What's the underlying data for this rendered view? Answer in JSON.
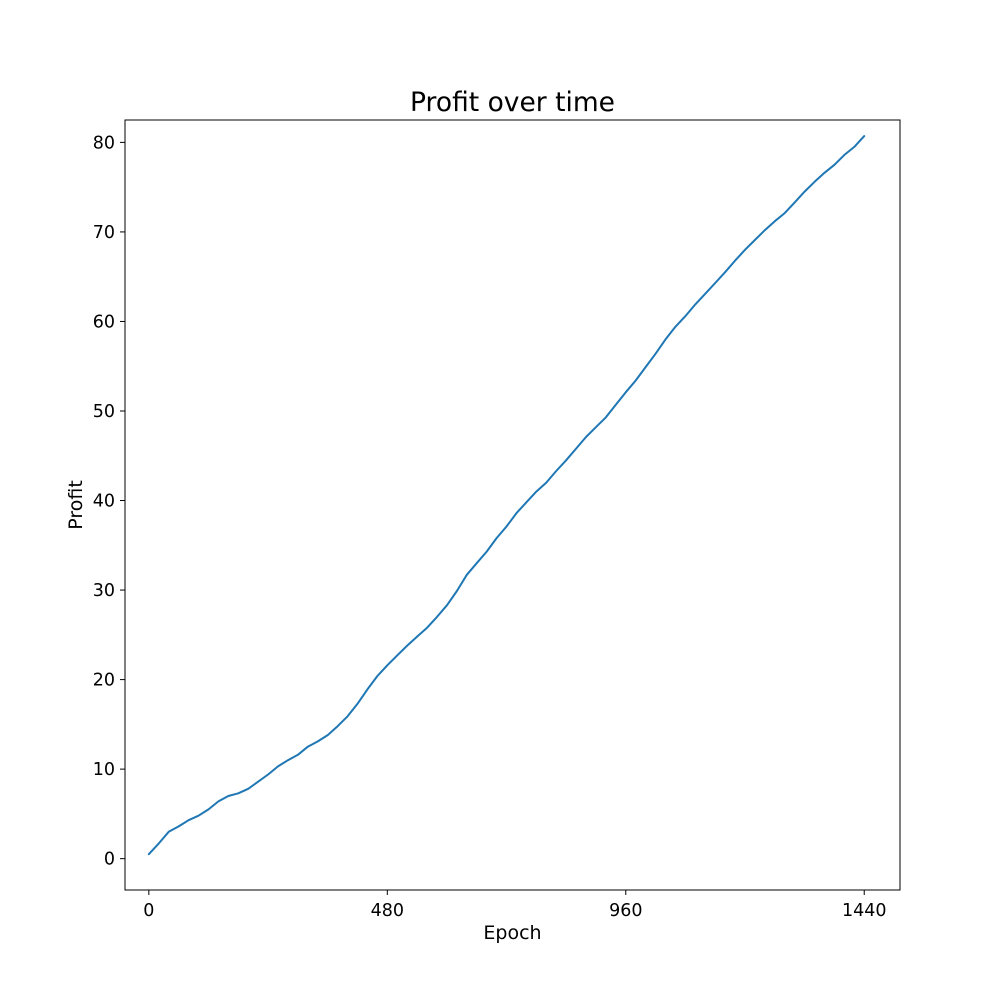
{
  "chart_data": {
    "type": "line",
    "title": "Profit over time",
    "xlabel": "Epoch",
    "ylabel": "Profit",
    "xlim": [
      -48,
      1512
    ],
    "ylim": [
      -3.5,
      82.5
    ],
    "xticks": [
      0,
      480,
      960,
      1440
    ],
    "yticks": [
      0,
      10,
      20,
      30,
      40,
      50,
      60,
      70,
      80
    ],
    "grid": false,
    "legend": "none",
    "series": [
      {
        "color": "#1f77b4",
        "x": [
          0,
          20,
          40,
          60,
          80,
          100,
          120,
          140,
          160,
          180,
          200,
          220,
          240,
          260,
          280,
          300,
          320,
          340,
          360,
          380,
          400,
          420,
          440,
          460,
          480,
          500,
          520,
          540,
          560,
          580,
          600,
          620,
          640,
          660,
          680,
          700,
          720,
          740,
          760,
          780,
          800,
          820,
          840,
          860,
          880,
          900,
          920,
          940,
          960,
          980,
          1000,
          1020,
          1040,
          1060,
          1080,
          1100,
          1120,
          1140,
          1160,
          1180,
          1200,
          1220,
          1240,
          1260,
          1280,
          1300,
          1320,
          1340,
          1360,
          1380,
          1400,
          1420,
          1440
        ],
        "y": [
          0.5,
          1.7,
          3.0,
          3.6,
          4.3,
          4.8,
          5.5,
          6.4,
          7.0,
          7.3,
          7.8,
          8.6,
          9.4,
          10.3,
          11.0,
          11.6,
          12.5,
          13.1,
          13.8,
          14.8,
          15.9,
          17.3,
          18.9,
          20.4,
          21.6,
          22.7,
          23.8,
          24.8,
          25.8,
          27.0,
          28.3,
          29.9,
          31.7,
          33.0,
          34.3,
          35.8,
          37.1,
          38.6,
          39.8,
          41.0,
          42.0,
          43.3,
          44.5,
          45.8,
          47.1,
          48.2,
          49.3,
          50.7,
          52.1,
          53.4,
          54.9,
          56.4,
          58.0,
          59.4,
          60.6,
          61.9,
          63.1,
          64.3,
          65.5,
          66.8,
          68.0,
          69.1,
          70.2,
          71.2,
          72.1,
          73.3,
          74.5,
          75.6,
          76.6,
          77.5,
          78.6,
          79.5,
          80.7
        ]
      }
    ]
  }
}
